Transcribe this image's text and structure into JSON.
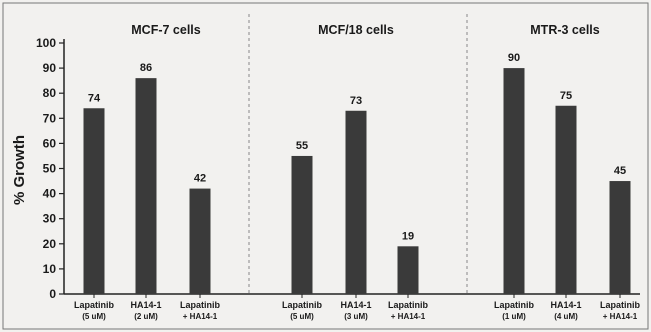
{
  "chart_data": {
    "type": "bar",
    "ylabel": "% Growth",
    "ylim": [
      0,
      100
    ],
    "yticks": [
      0,
      10,
      20,
      30,
      40,
      50,
      60,
      70,
      80,
      90,
      100
    ],
    "bar_color": "#3a3a3a",
    "groups": [
      {
        "title": "MCF-7 cells",
        "categories": [
          {
            "line1": "Lapatinib",
            "line2": "(5 uM)"
          },
          {
            "line1": "HA14-1",
            "line2": "(2 uM)"
          },
          {
            "line1": "Lapatinib",
            "line2": "+ HA14-1"
          }
        ],
        "values": [
          74,
          86,
          42
        ]
      },
      {
        "title": "MCF/18 cells",
        "categories": [
          {
            "line1": "Lapatinib",
            "line2": "(5 uM)"
          },
          {
            "line1": "HA14-1",
            "line2": "(3 uM)"
          },
          {
            "line1": "Lapatinib",
            "line2": "+ HA14-1"
          }
        ],
        "values": [
          55,
          73,
          19
        ]
      },
      {
        "title": "MTR-3 cells",
        "categories": [
          {
            "line1": "Lapatinib",
            "line2": "(1 uM)"
          },
          {
            "line1": "HA14-1",
            "line2": "(4 uM)"
          },
          {
            "line1": "Lapatinib",
            "line2": "+ HA14-1"
          }
        ],
        "values": [
          90,
          75,
          45
        ]
      }
    ]
  }
}
